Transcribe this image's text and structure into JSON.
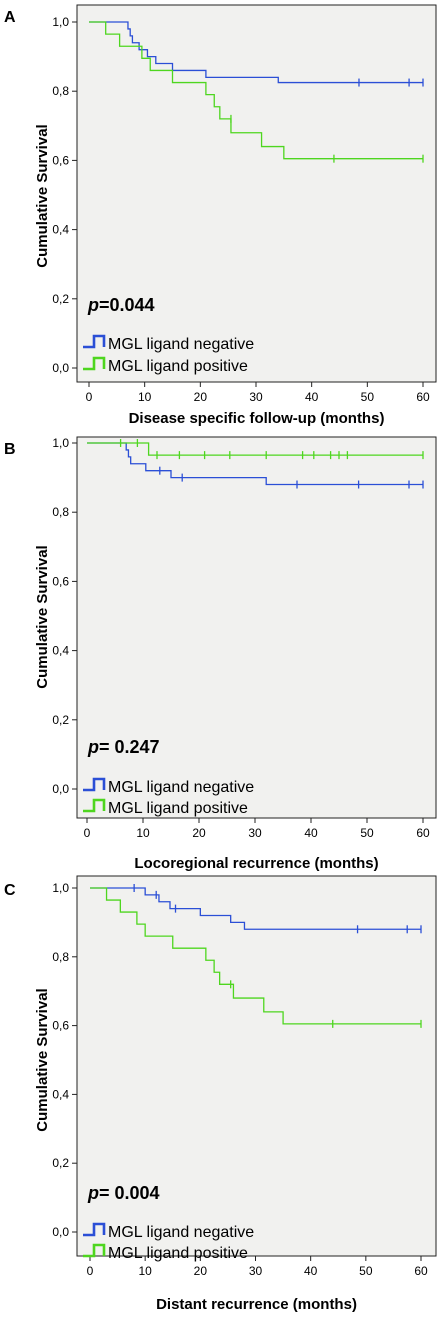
{
  "chart_data": [
    {
      "panel_label": "A",
      "type": "line",
      "xlabel": "Disease specific follow-up (months)",
      "ylabel": "Cumulative Survival",
      "xlim": [
        0,
        60
      ],
      "ylim": [
        0,
        1
      ],
      "x_ticks": [
        "0",
        "10",
        "20",
        "30",
        "40",
        "50",
        "60"
      ],
      "y_ticks": [
        "0,0",
        "0,2",
        "0,4",
        "0,6",
        "0,8",
        "1,0"
      ],
      "p_prefix": "p",
      "p_value": "=0.044",
      "grid": false,
      "legend_position": "bottom-left",
      "series": [
        {
          "name": "MGL ligand negative",
          "color": "#2b4fd6",
          "steps": [
            [
              0,
              1.0
            ],
            [
              7,
              0.98
            ],
            [
              7.4,
              0.96
            ],
            [
              7.8,
              0.94
            ],
            [
              9,
              0.92
            ],
            [
              10.5,
              0.9
            ],
            [
              12,
              0.88
            ],
            [
              15,
              0.86
            ],
            [
              21,
              0.84
            ],
            [
              34,
              0.825
            ],
            [
              60,
              0.825
            ]
          ],
          "censored": [
            [
              48.5,
              0.825
            ],
            [
              57.5,
              0.825
            ],
            [
              60,
              0.825
            ]
          ]
        },
        {
          "name": "MGL ligand positive",
          "color": "#4ed61f",
          "steps": [
            [
              0,
              1.0
            ],
            [
              3,
              0.965
            ],
            [
              5.5,
              0.93
            ],
            [
              9.5,
              0.895
            ],
            [
              11,
              0.86
            ],
            [
              15,
              0.825
            ],
            [
              21,
              0.79
            ],
            [
              22.5,
              0.755
            ],
            [
              23.5,
              0.72
            ],
            [
              25.5,
              0.68
            ],
            [
              31,
              0.64
            ],
            [
              35,
              0.605
            ],
            [
              60,
              0.605
            ]
          ],
          "censored": [
            [
              25.5,
              0.72
            ],
            [
              44,
              0.605
            ],
            [
              60,
              0.605
            ]
          ]
        }
      ]
    },
    {
      "panel_label": "B",
      "type": "line",
      "xlabel": "Locoregional recurrence (months)",
      "ylabel": "Cumulative Survival",
      "xlim": [
        0,
        60
      ],
      "ylim": [
        0,
        1
      ],
      "x_ticks": [
        "0",
        "10",
        "20",
        "30",
        "40",
        "50",
        "60"
      ],
      "y_ticks": [
        "0,0",
        "0,2",
        "0,4",
        "0,6",
        "0,8",
        "1,0"
      ],
      "p_prefix": "p",
      "p_value": "= 0.247",
      "grid": false,
      "legend_position": "bottom-left",
      "series": [
        {
          "name": "MGL ligand negative",
          "color": "#2b4fd6",
          "steps": [
            [
              0,
              1.0
            ],
            [
              7,
              0.98
            ],
            [
              7.4,
              0.96
            ],
            [
              7.8,
              0.94
            ],
            [
              10.5,
              0.92
            ],
            [
              15,
              0.9
            ],
            [
              32,
              0.88
            ],
            [
              60,
              0.88
            ]
          ],
          "censored": [
            [
              13,
              0.92
            ],
            [
              17,
              0.9
            ],
            [
              37.5,
              0.88
            ],
            [
              48.5,
              0.88
            ],
            [
              57.5,
              0.88
            ],
            [
              60,
              0.88
            ]
          ]
        },
        {
          "name": "MGL ligand positive",
          "color": "#4ed61f",
          "steps": [
            [
              0,
              1.0
            ],
            [
              11,
              0.965
            ],
            [
              60,
              0.965
            ]
          ],
          "censored": [
            [
              6,
              1.0
            ],
            [
              9,
              1.0
            ],
            [
              12.5,
              0.965
            ],
            [
              16.5,
              0.965
            ],
            [
              21,
              0.965
            ],
            [
              25.5,
              0.965
            ],
            [
              32,
              0.965
            ],
            [
              38.5,
              0.965
            ],
            [
              40.5,
              0.965
            ],
            [
              43.5,
              0.965
            ],
            [
              45,
              0.965
            ],
            [
              46.5,
              0.965
            ],
            [
              60,
              0.965
            ]
          ]
        }
      ]
    },
    {
      "panel_label": "C",
      "type": "line",
      "xlabel": "Distant recurrence (months)",
      "ylabel": "Cumulative Survival",
      "xlim": [
        0,
        60
      ],
      "ylim": [
        0,
        1
      ],
      "x_ticks": [
        "0",
        "10",
        "20",
        "30",
        "40",
        "50",
        "60"
      ],
      "y_ticks": [
        "0,0",
        "0,2",
        "0,4",
        "0,6",
        "0,8",
        "1,0"
      ],
      "p_prefix": "p",
      "p_value": "= 0.004",
      "grid": false,
      "legend_position": "bottom-left",
      "series": [
        {
          "name": "MGL ligand negative",
          "color": "#2b4fd6",
          "steps": [
            [
              0,
              1.0
            ],
            [
              10,
              0.98
            ],
            [
              12.5,
              0.96
            ],
            [
              14.5,
              0.94
            ],
            [
              20,
              0.92
            ],
            [
              25.5,
              0.9
            ],
            [
              28,
              0.88
            ],
            [
              60,
              0.88
            ]
          ],
          "censored": [
            [
              8,
              1.0
            ],
            [
              12,
              0.98
            ],
            [
              15.5,
              0.94
            ],
            [
              48.5,
              0.88
            ],
            [
              57.5,
              0.88
            ],
            [
              60,
              0.88
            ]
          ]
        },
        {
          "name": "MGL ligand positive",
          "color": "#4ed61f",
          "steps": [
            [
              0,
              1.0
            ],
            [
              3,
              0.965
            ],
            [
              5.5,
              0.93
            ],
            [
              8.5,
              0.895
            ],
            [
              10,
              0.86
            ],
            [
              15,
              0.825
            ],
            [
              21,
              0.79
            ],
            [
              22.5,
              0.755
            ],
            [
              23.5,
              0.72
            ],
            [
              26,
              0.68
            ],
            [
              31.5,
              0.64
            ],
            [
              35,
              0.605
            ],
            [
              60,
              0.605
            ]
          ],
          "censored": [
            [
              25.5,
              0.72
            ],
            [
              44,
              0.605
            ],
            [
              60,
              0.605
            ]
          ]
        }
      ]
    }
  ]
}
